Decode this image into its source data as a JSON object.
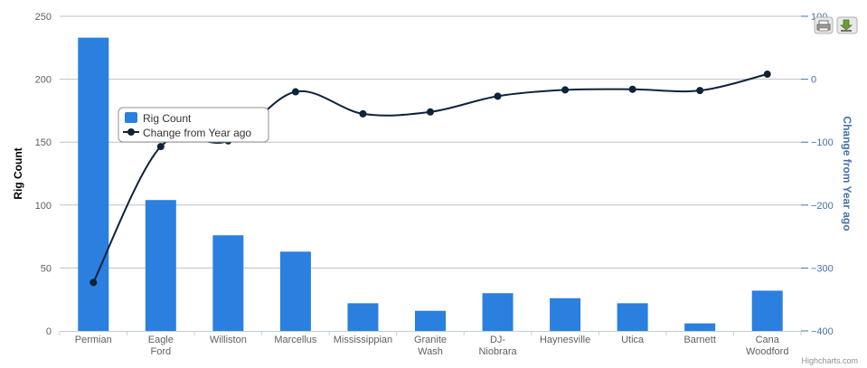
{
  "chart_data": {
    "type": "bar",
    "categories": [
      "Permian",
      "Eagle Ford",
      "Williston",
      "Marcellus",
      "Mississippian",
      "Granite Wash",
      "DJ-Niobrara",
      "Haynesville",
      "Utica",
      "Barnett",
      "Cana Woodford"
    ],
    "series": [
      {
        "name": "Rig Count",
        "type": "bar",
        "axis": "left",
        "color": "#2b7fdf",
        "values": [
          233,
          104,
          76,
          63,
          22,
          16,
          30,
          26,
          22,
          6,
          32
        ]
      },
      {
        "name": "Change from Year ago",
        "type": "spline",
        "axis": "right",
        "color": "#0d233a",
        "values": [
          -323,
          -107,
          -98,
          -20,
          -55,
          -52,
          -27,
          -17,
          -16,
          -18,
          8
        ]
      }
    ],
    "y_left": {
      "title": "Rig Count",
      "min": 0,
      "max": 250,
      "ticks": [
        0,
        50,
        100,
        150,
        200,
        250
      ]
    },
    "y_right": {
      "title": "Change from Year ago",
      "min": -400,
      "max": 100,
      "ticks": [
        "−400",
        "−300",
        "−200",
        "−100",
        "0",
        "100"
      ]
    },
    "grid": true,
    "legend_position": "top-left, floating"
  },
  "credit": "Highcharts.com",
  "colors": {
    "bar": "#2b7fdf",
    "line": "#0d233a",
    "right_axis": "#4572a7",
    "grid": "#c0c0c0"
  },
  "icons": {
    "print": "printer-icon",
    "export": "download-icon"
  }
}
